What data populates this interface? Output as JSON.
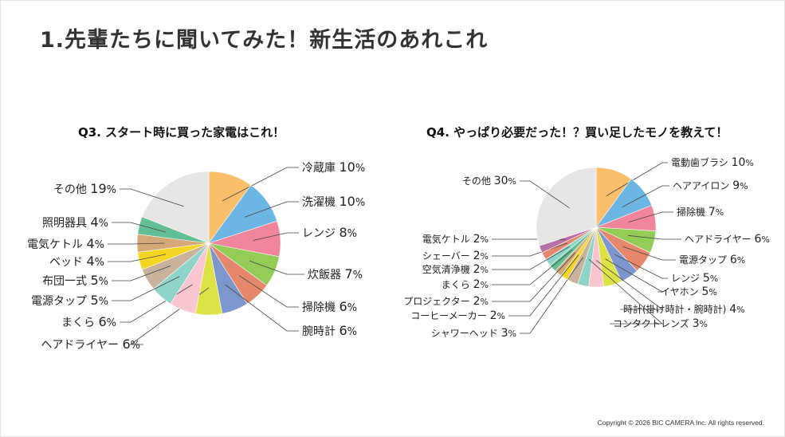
{
  "page": {
    "title": "1.先輩たちに聞いてみた！新生活のあれこれ",
    "copyright": "Copyright © 2026 BIC CAMERA Inc. All rights reserved."
  },
  "chart_data": [
    {
      "type": "pie",
      "title": "Q3.  スタート時に買った家電はこれ！",
      "labels": [
        "冷蔵庫",
        "洗濯機",
        "レンジ",
        "炊飯器",
        "掃除機",
        "腕時計",
        "ヘアドライヤー",
        "まくら",
        "電源タップ",
        "布団一式",
        "ベッド",
        "電気ケトル",
        "照明器具",
        "その他"
      ],
      "values": [
        10,
        10,
        8,
        7,
        6,
        6,
        6,
        6,
        5,
        5,
        4,
        4,
        4,
        19
      ],
      "colors": [
        "#fbbf6c",
        "#6cb6e3",
        "#f0859c",
        "#93cc56",
        "#e5876a",
        "#7d97ce",
        "#dde247",
        "#f9c5cf",
        "#8fd4c8",
        "#c8b29b",
        "#f3d624",
        "#d4a877",
        "#62bf95",
        "#e6e6e6"
      ]
    },
    {
      "type": "pie",
      "title": "Q4.  やっぱり必要だった！？買い足したモノを教えて！",
      "labels": [
        "電動歯ブラシ",
        "ヘアアイロン",
        "掃除機",
        "ヘアドライヤー",
        "電源タップ",
        "レンジ",
        "イヤホン",
        "時計(掛け時計・腕時計)",
        "コンタクトレンズ",
        "シャワーヘッド",
        "コーヒーメーカー",
        "プロジェクター",
        "まくら",
        "空気清浄機",
        "シェーバー",
        "電気ケトル",
        "その他"
      ],
      "values": [
        10,
        9,
        7,
        6,
        6,
        5,
        5,
        4,
        3,
        3,
        2,
        2,
        2,
        2,
        2,
        2,
        30
      ],
      "colors": [
        "#fbbf6c",
        "#6cb6e3",
        "#f0859c",
        "#93cc56",
        "#e5876a",
        "#7d97ce",
        "#dde247",
        "#f9c5cf",
        "#8fd4c8",
        "#c8b29b",
        "#f3d624",
        "#d4a877",
        "#62bf95",
        "#8fd4c8",
        "#e5876a",
        "#b86fa6",
        "#e6e6e6"
      ]
    }
  ]
}
